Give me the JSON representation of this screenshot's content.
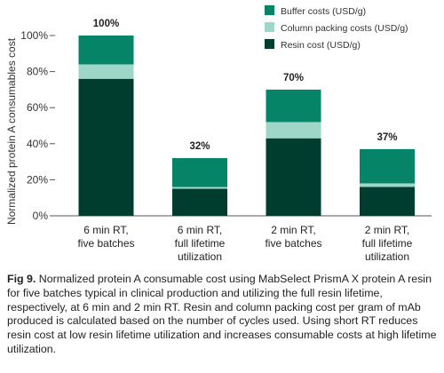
{
  "chart_data": {
    "type": "bar",
    "stacked": true,
    "categories": [
      [
        "6 min RT,",
        "five batches"
      ],
      [
        "6 min RT,",
        "full lifetime",
        "utilization"
      ],
      [
        "2 min RT,",
        "five batches"
      ],
      [
        "2 min RT,",
        "full lifetime",
        "utilization"
      ]
    ],
    "series": [
      {
        "name": "Resin cost (USD/g)",
        "color": "#003d2e",
        "values": [
          76,
          15,
          43,
          16
        ]
      },
      {
        "name": "Column packing costs (USD/g)",
        "color": "#9ed6c7",
        "values": [
          8,
          1,
          9,
          2
        ]
      },
      {
        "name": "Buffer costs (USD/g)",
        "color": "#058467",
        "values": [
          16,
          16,
          18,
          19
        ]
      }
    ],
    "totals": [
      "100%",
      "32%",
      "70%",
      "37%"
    ],
    "total_values": [
      100,
      32,
      70,
      37
    ],
    "ylabel": "Normalized protein A consumables cost",
    "xlabel": "",
    "ylim": [
      0,
      100
    ],
    "yticks": [
      "0%",
      "20%",
      "40%",
      "60%",
      "80%",
      "100%"
    ],
    "ytick_values": [
      0,
      20,
      40,
      60,
      80,
      100
    ],
    "legend_order": [
      "Buffer costs (USD/g)",
      "Column packing costs (USD/g)",
      "Resin cost (USD/g)"
    ],
    "legend_position": "top-right",
    "grid": false
  },
  "caption": {
    "fig_label": "Fig 9.",
    "text": " Normalized protein A consumable cost using MabSelect PrismA X protein A resin for five batches typical in clinical production and utilizing the full resin lifetime, respectively, at 6 min and 2 min RT. Resin and column packing cost per gram of mAb produced is calculated based on the number of cycles used. Using short RT reduces resin cost at low resin lifetime utilization and increases consumable costs at high lifetime utilization."
  }
}
